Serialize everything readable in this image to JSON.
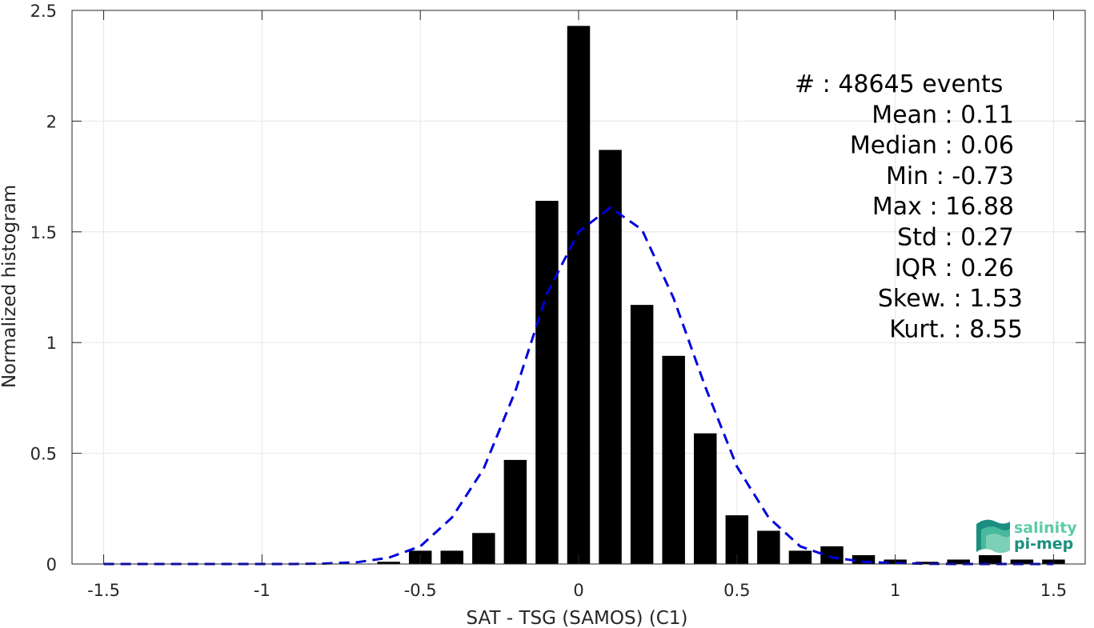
{
  "chart_data": {
    "type": "bar",
    "xlabel": "SAT - TSG (SAMOS) (C1)",
    "ylabel": "Normalized histogram",
    "xlim": [
      -1.6,
      1.6
    ],
    "ylim": [
      0,
      2.5
    ],
    "xticks": [
      -1.5,
      -1,
      -0.5,
      0,
      0.5,
      1,
      1.5
    ],
    "xtick_labels": [
      "-1.5",
      "-1",
      "-0.5",
      "0",
      "0.5",
      "1",
      "1.5"
    ],
    "yticks": [
      0,
      0.5,
      1,
      1.5,
      2,
      2.5
    ],
    "ytick_labels": [
      "0",
      "0.5",
      "1",
      "1.5",
      "2",
      "2.5"
    ],
    "grid": true,
    "bar_color": "#000000",
    "bars": {
      "x": [
        -0.6,
        -0.5,
        -0.4,
        -0.3,
        -0.2,
        -0.1,
        0.0,
        0.1,
        0.2,
        0.3,
        0.4,
        0.5,
        0.6,
        0.7,
        0.8,
        0.9,
        1.0,
        1.1,
        1.2,
        1.3,
        1.4,
        1.5
      ],
      "values": [
        0.01,
        0.06,
        0.06,
        0.14,
        0.47,
        1.64,
        2.43,
        1.87,
        1.17,
        0.94,
        0.59,
        0.22,
        0.15,
        0.06,
        0.08,
        0.04,
        0.02,
        0.01,
        0.02,
        0.04,
        0.02,
        0.02
      ]
    },
    "fit_curve": {
      "color": "#0000dd",
      "style": "dashed",
      "x": [
        -1.5,
        -1.4,
        -1.3,
        -1.2,
        -1.1,
        -1.0,
        -0.9,
        -0.8,
        -0.7,
        -0.6,
        -0.5,
        -0.4,
        -0.3,
        -0.2,
        -0.1,
        0.0,
        0.1,
        0.2,
        0.3,
        0.4,
        0.5,
        0.6,
        0.7,
        0.8,
        0.9,
        1.0,
        1.1,
        1.2,
        1.3,
        1.4,
        1.5
      ],
      "y": [
        0,
        0,
        0,
        0,
        0,
        0,
        0,
        0.002,
        0.008,
        0.028,
        0.08,
        0.21,
        0.43,
        0.78,
        1.22,
        1.5,
        1.61,
        1.51,
        1.2,
        0.8,
        0.44,
        0.21,
        0.08,
        0.03,
        0.01,
        0.004,
        0.001,
        0,
        0,
        0,
        0
      ]
    },
    "stats": [
      "#  : 48645 events",
      "Mean : 0.11",
      "Median : 0.06",
      "Min : -0.73",
      "Max : 16.88",
      "Std : 0.27",
      "IQR : 0.26",
      "Skew. : 1.53",
      "Kurt. : 8.55"
    ]
  },
  "logo": {
    "line1": "salinity",
    "line2": "pi-mep",
    "color_dark": "#1a8f80",
    "color_light": "#5ccaa8"
  }
}
